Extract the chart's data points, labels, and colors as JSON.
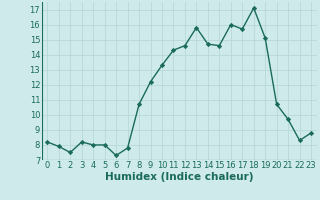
{
  "x": [
    0,
    1,
    2,
    3,
    4,
    5,
    6,
    7,
    8,
    9,
    10,
    11,
    12,
    13,
    14,
    15,
    16,
    17,
    18,
    19,
    20,
    21,
    22,
    23
  ],
  "y": [
    8.2,
    7.9,
    7.5,
    8.2,
    8.0,
    8.0,
    7.3,
    7.8,
    10.7,
    12.2,
    13.3,
    14.3,
    14.6,
    15.8,
    14.7,
    14.6,
    16.0,
    15.7,
    17.1,
    15.1,
    10.7,
    9.7,
    8.3,
    8.8
  ],
  "xlabel": "Humidex (Indice chaleur)",
  "ylim": [
    7.0,
    17.5
  ],
  "xlim": [
    -0.5,
    23.5
  ],
  "yticks": [
    7,
    8,
    9,
    10,
    11,
    12,
    13,
    14,
    15,
    16,
    17
  ],
  "xticks": [
    0,
    1,
    2,
    3,
    4,
    5,
    6,
    7,
    8,
    9,
    10,
    11,
    12,
    13,
    14,
    15,
    16,
    17,
    18,
    19,
    20,
    21,
    22,
    23
  ],
  "line_color": "#1a6b5a",
  "marker_color": "#1a6b5a",
  "bg_color": "#ceeaea",
  "grid_color": "#b8d8d8",
  "xlabel_fontsize": 7.5,
  "tick_fontsize": 6.0,
  "linewidth": 1.0,
  "markersize": 2.2
}
